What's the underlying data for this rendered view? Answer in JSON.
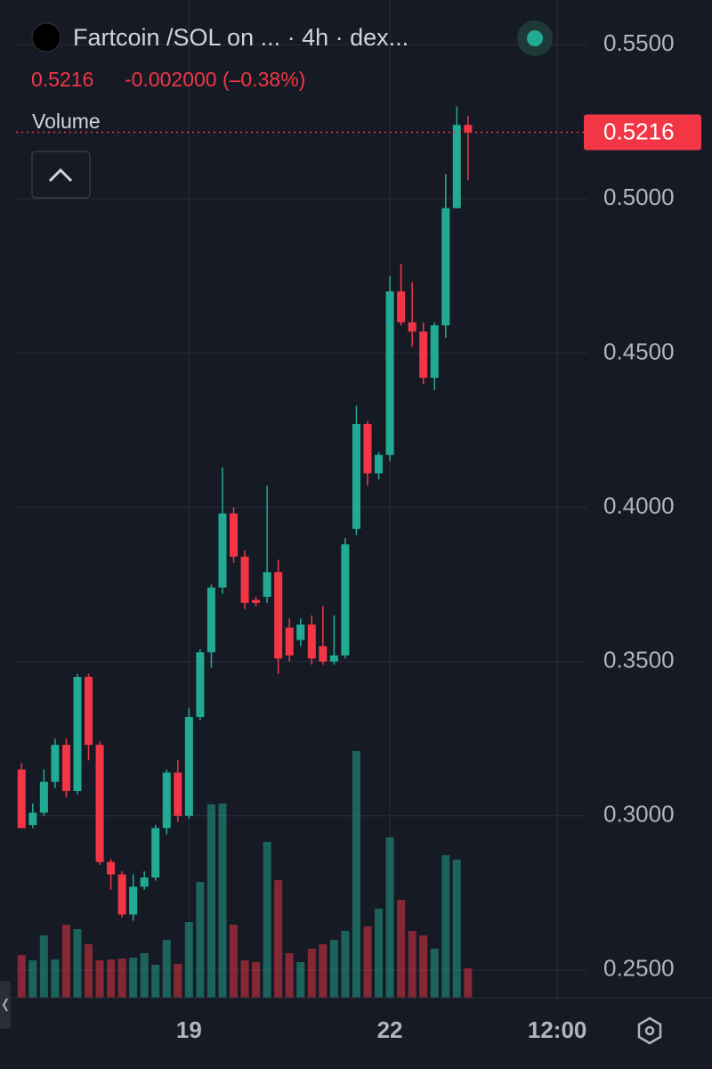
{
  "chart_data": {
    "type": "candlestick",
    "title": "Fartcoin /SOL on ... · 4h · dex...",
    "change_label": "-0.002000 (–0.38%)",
    "volume_label": "Volume",
    "last_price": 0.5216,
    "last_price_label": "0.5216",
    "up_color": "#22ab94",
    "down_color": "#f23645",
    "grid": true,
    "ylim": [
      0.241,
      0.5645
    ],
    "yticks": [
      {
        "value": 0.25,
        "label": "0.2500"
      },
      {
        "value": 0.3,
        "label": "0.3000"
      },
      {
        "value": 0.35,
        "label": "0.3500"
      },
      {
        "value": 0.4,
        "label": "0.4000"
      },
      {
        "value": 0.45,
        "label": "0.4500"
      },
      {
        "value": 0.5,
        "label": "0.5000"
      },
      {
        "value": 0.55,
        "label": "0.5500"
      }
    ],
    "xlim": [
      -0.5,
      50.7
    ],
    "xticks": [
      {
        "value": 15,
        "label": "19"
      },
      {
        "value": 33,
        "label": "22"
      },
      {
        "value": 48,
        "label": "12:00"
      }
    ],
    "open": [
      0.315,
      0.297,
      0.301,
      0.311,
      0.323,
      0.308,
      0.345,
      0.323,
      0.285,
      0.281,
      0.268,
      0.277,
      0.28,
      0.296,
      0.314,
      0.3,
      0.332,
      0.353,
      0.374,
      0.398,
      0.384,
      0.37,
      0.371,
      0.379,
      0.361,
      0.357,
      0.362,
      0.355,
      0.35,
      0.352,
      0.393,
      0.427,
      0.411,
      0.417,
      0.47,
      0.46,
      0.457,
      0.442,
      0.459,
      0.497,
      0.524
    ],
    "high": [
      0.317,
      0.304,
      0.315,
      0.325,
      0.325,
      0.346,
      0.346,
      0.324,
      0.286,
      0.282,
      0.281,
      0.282,
      0.297,
      0.315,
      0.318,
      0.335,
      0.354,
      0.375,
      0.413,
      0.4,
      0.386,
      0.371,
      0.407,
      0.383,
      0.364,
      0.364,
      0.365,
      0.368,
      0.365,
      0.39,
      0.433,
      0.428,
      0.418,
      0.475,
      0.479,
      0.473,
      0.46,
      0.46,
      0.508,
      0.53,
      0.527
    ],
    "low": [
      0.296,
      0.296,
      0.3,
      0.309,
      0.306,
      0.307,
      0.318,
      0.284,
      0.276,
      0.267,
      0.266,
      0.276,
      0.279,
      0.294,
      0.298,
      0.299,
      0.331,
      0.348,
      0.372,
      0.382,
      0.367,
      0.368,
      0.369,
      0.346,
      0.35,
      0.355,
      0.349,
      0.349,
      0.349,
      0.351,
      0.391,
      0.407,
      0.409,
      0.415,
      0.459,
      0.452,
      0.44,
      0.438,
      0.455,
      0.497,
      0.506
    ],
    "close": [
      0.296,
      0.301,
      0.311,
      0.323,
      0.308,
      0.345,
      0.323,
      0.285,
      0.281,
      0.268,
      0.277,
      0.28,
      0.296,
      0.314,
      0.3,
      0.332,
      0.353,
      0.374,
      0.398,
      0.384,
      0.369,
      0.369,
      0.379,
      0.351,
      0.352,
      0.362,
      0.351,
      0.35,
      0.352,
      0.388,
      0.427,
      0.411,
      0.417,
      0.47,
      0.46,
      0.457,
      0.442,
      0.459,
      0.497,
      0.524,
      0.5216
    ],
    "volume": [
      48,
      42,
      70,
      43,
      82,
      77,
      60,
      42,
      43,
      44,
      45,
      50,
      37,
      65,
      38,
      85,
      130,
      217,
      218,
      82,
      42,
      40,
      175,
      132,
      50,
      40,
      55,
      60,
      65,
      75,
      277,
      80,
      100,
      180,
      110,
      75,
      70,
      55,
      160,
      155,
      33
    ],
    "vlim": [
      0,
      1120
    ]
  }
}
